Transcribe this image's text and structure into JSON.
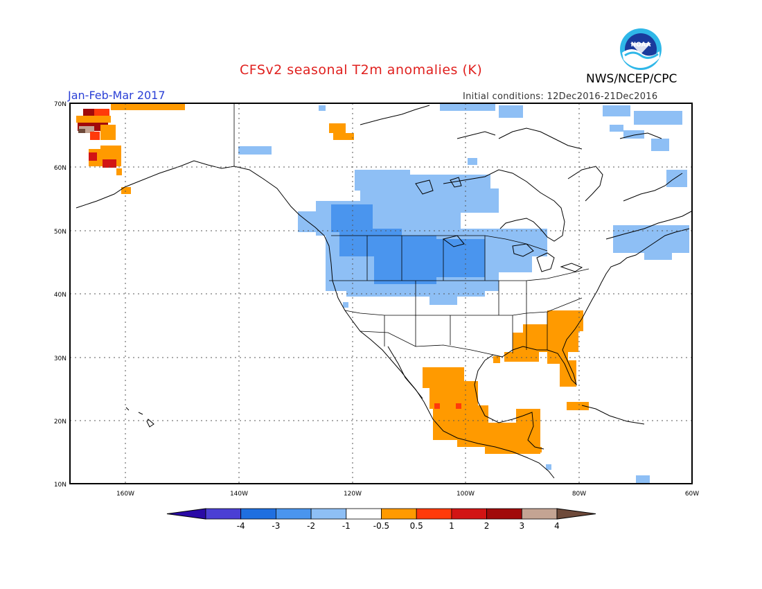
{
  "header": {
    "title": "CFSv2 seasonal T2m anomalies (K)",
    "agency": "NWS/NCEP/CPC",
    "period": "Jan-Feb-Mar 2017",
    "init_conditions": "Initial conditions: 12Dec2016-21Dec2016",
    "logo_text": "NOAA"
  },
  "map": {
    "lon_range": [
      -172,
      -60
    ],
    "lat_range": [
      10,
      70
    ],
    "lat_labels": [
      "70N",
      "60N",
      "50N",
      "40N",
      "30N",
      "20N",
      "10N"
    ],
    "lon_labels": [
      "160W",
      "140W",
      "120W",
      "100W",
      "80W",
      "60W"
    ],
    "gridlines": "dotted",
    "colors": {
      "neg_4": "#2a0aa6",
      "neg_3": "#4b3fd4",
      "neg_2": "#1f6fe0",
      "neg_1": "#4a95ee",
      "neg_05": "#8ebff5",
      "neutral": "#ffffff",
      "pos_05": "#ff9a00",
      "pos_1": "#ff3a0a",
      "pos_2": "#d21414",
      "pos_3": "#a10a0a",
      "pos_4": "#c4a493",
      "pos_5": "#6e4a3a"
    }
  },
  "colorbar": {
    "labels": [
      "-4",
      "-3",
      "-2",
      "-1",
      "-0.5",
      "0.5",
      "1",
      "2",
      "3",
      "4"
    ],
    "colors": [
      "#2a0aa6",
      "#4b3fd4",
      "#1f6fe0",
      "#4a95ee",
      "#8ebff5",
      "#ffffff",
      "#ff9a00",
      "#ff3a0a",
      "#d21414",
      "#a10a0a",
      "#c4a493",
      "#6e4a3a"
    ]
  }
}
